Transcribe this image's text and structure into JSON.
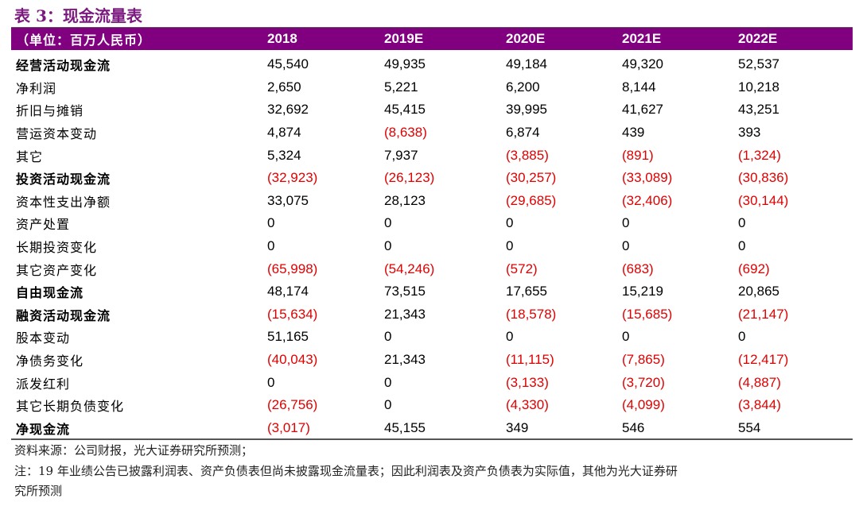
{
  "title": "表 3：现金流量表",
  "header": {
    "unit": "（单位：百万人民币）",
    "years": [
      "2018",
      "2019E",
      "2020E",
      "2021E",
      "2022E"
    ]
  },
  "rows": [
    {
      "label": "经营活动现金流",
      "bold": true,
      "values": [
        "45,540",
        "49,935",
        "49,184",
        "49,320",
        "52,537"
      ]
    },
    {
      "label": "净利润",
      "values": [
        "2,650",
        "5,221",
        "6,200",
        "8,144",
        "10,218"
      ]
    },
    {
      "label": "折旧与摊销",
      "values": [
        "32,692",
        "45,415",
        "39,995",
        "41,627",
        "43,251"
      ]
    },
    {
      "label": "营运资本变动",
      "values": [
        "4,874",
        "(8,638)",
        "6,874",
        "439",
        "393"
      ]
    },
    {
      "label": "其它",
      "values": [
        "5,324",
        "7,937",
        "(3,885)",
        "(891)",
        "(1,324)"
      ]
    },
    {
      "label": "投资活动现金流",
      "bold": true,
      "values": [
        "(32,923)",
        "(26,123)",
        "(30,257)",
        "(33,089)",
        "(30,836)"
      ]
    },
    {
      "label": "资本性支出净额",
      "values": [
        "33,075",
        "28,123",
        "(29,685)",
        "(32,406)",
        "(30,144)"
      ]
    },
    {
      "label": "资产处置",
      "values": [
        "0",
        "0",
        "0",
        "0",
        "0"
      ]
    },
    {
      "label": "长期投资变化",
      "values": [
        "0",
        "0",
        "0",
        "0",
        "0"
      ]
    },
    {
      "label": "其它资产变化",
      "values": [
        "(65,998)",
        "(54,246)",
        "(572)",
        "(683)",
        "(692)"
      ]
    },
    {
      "label": "自由现金流",
      "bold": true,
      "values": [
        "48,174",
        "73,515",
        "17,655",
        "15,219",
        "20,865"
      ]
    },
    {
      "label": "融资活动现金流",
      "bold": true,
      "values": [
        "(15,634)",
        "21,343",
        "(18,578)",
        "(15,685)",
        "(21,147)"
      ]
    },
    {
      "label": "股本变动",
      "values": [
        "51,165",
        "0",
        "0",
        "0",
        "0"
      ]
    },
    {
      "label": "净债务变化",
      "values": [
        "(40,043)",
        "21,343",
        "(11,115)",
        "(7,865)",
        "(12,417)"
      ]
    },
    {
      "label": "派发红利",
      "values": [
        "0",
        "0",
        "(3,133)",
        "(3,720)",
        "(4,887)"
      ]
    },
    {
      "label": "其它长期负债变化",
      "values": [
        "(26,756)",
        "0",
        "(4,330)",
        "(4,099)",
        "(3,844)"
      ]
    },
    {
      "label": "净现金流",
      "bold": true,
      "values": [
        "(3,017)",
        "45,155",
        "349",
        "546",
        "554"
      ]
    }
  ],
  "notes": [
    "资料来源：公司财报，光大证券研究所预测；",
    "注：19 年业绩公告已披露利润表、资产负债表但尚未披露现金流量表；因此利润表及资产负债表为实际值，其他为光大证券研",
    "究所预测"
  ],
  "colors": {
    "header": "#800080",
    "negative": "#e00000"
  }
}
